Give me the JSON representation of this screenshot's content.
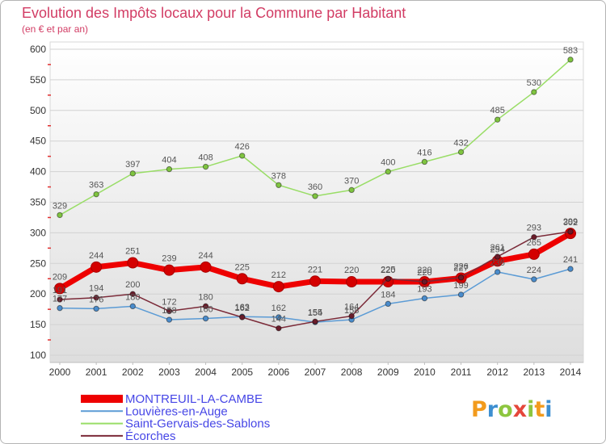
{
  "chart_data": {
    "type": "line",
    "title": "Evolution des Impôts locaux pour la Commune par Habitant",
    "subtitle": "(en € et par an)",
    "xlabel": "",
    "ylabel": "",
    "x": [
      "2000",
      "2001",
      "2002",
      "2003",
      "2004",
      "2005",
      "2006",
      "2007",
      "2008",
      "2009",
      "2010",
      "2011",
      "2012",
      "2013",
      "2014"
    ],
    "ylim": [
      100,
      600
    ],
    "yticks": [
      100,
      150,
      200,
      250,
      300,
      350,
      400,
      450,
      500,
      550,
      600
    ],
    "grid": true,
    "legend": "bottom-left",
    "series": [
      {
        "name": "MONTREUIL-LA-CAMBE",
        "color": "#ee0000",
        "marker_color": "#d40000",
        "values": [
          209,
          244,
          251,
          239,
          244,
          225,
          212,
          221,
          220,
          220,
          220,
          226,
          254,
          265,
          299
        ]
      },
      {
        "name": "Louvières-en-Auge",
        "color": "#5b9bd5",
        "marker_color": "#4a8ccc",
        "values": [
          177,
          176,
          180,
          158,
          160,
          163,
          162,
          154,
          158,
          184,
          193,
          199,
          236,
          224,
          241
        ]
      },
      {
        "name": "Saint-Gervais-des-Sablons",
        "color": "#99dd66",
        "marker_color": "#7fc440",
        "values": [
          329,
          363,
          397,
          404,
          408,
          426,
          378,
          360,
          370,
          400,
          416,
          432,
          485,
          530,
          583
        ]
      },
      {
        "name": "Écorches",
        "color": "#7b2a38",
        "marker_color": "#6a1c2a",
        "values": [
          191,
          194,
          200,
          172,
          180,
          162,
          144,
          155,
          164,
          225,
          220,
          227,
          261,
          293,
          302
        ]
      }
    ]
  },
  "colors": {
    "title": "#d23c64",
    "legend_text": "#4646e6",
    "axis_text": "#333333",
    "data_label": "#555555",
    "grid": "#d2d2d2",
    "minor_tick": "#e03030"
  },
  "logo": {
    "text": "Proxiti",
    "letter_colors": [
      "#f29b1d",
      "#3d8fd1",
      "#8dc63f",
      "#e5473b",
      "#8dc63f",
      "#f29b1d",
      "#3d8fd1"
    ]
  }
}
